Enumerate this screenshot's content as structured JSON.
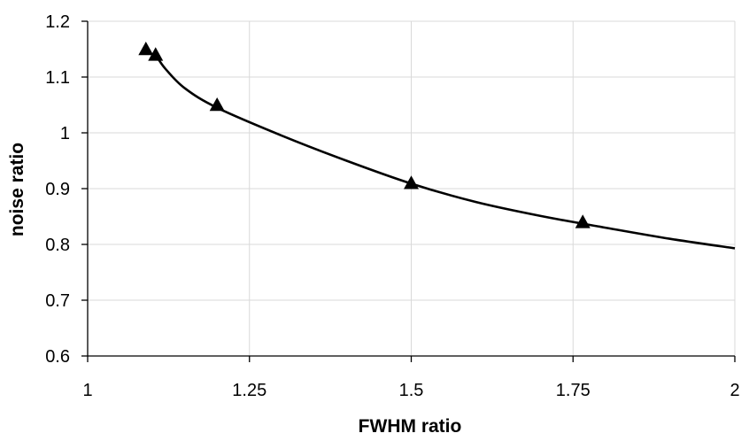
{
  "chart_data": {
    "type": "scatter",
    "title": "",
    "xlabel": "FWHM ratio",
    "ylabel": "noise ratio",
    "xlim": [
      1,
      2
    ],
    "ylim": [
      0.6,
      1.2
    ],
    "xticks": [
      1,
      1.25,
      1.5,
      1.75,
      2
    ],
    "xtick_labels": [
      "1",
      "1.25",
      "1.5",
      "1.75",
      "2"
    ],
    "yticks": [
      0.6,
      0.7,
      0.8,
      0.9,
      1.0,
      1.1,
      1.2
    ],
    "ytick_labels": [
      "0.6",
      "0.7",
      "0.8",
      "0.9",
      "1",
      "1.1",
      "1.2"
    ],
    "grid": "on (light gray, vertical and horizontal)",
    "legend": "none",
    "marker": "black filled triangle",
    "series": [
      {
        "type": "scatter",
        "x": [
          1.09,
          1.105,
          1.2,
          1.5,
          1.765
        ],
        "y": [
          1.15,
          1.14,
          1.05,
          0.91,
          0.84
        ]
      },
      {
        "type": "line",
        "x": [
          1.105,
          1.12,
          1.15,
          1.2,
          1.3,
          1.4,
          1.5,
          1.6,
          1.7,
          1.8,
          1.9,
          2.0
        ],
        "y": [
          1.14,
          1.115,
          1.08,
          1.045,
          0.995,
          0.95,
          0.909,
          0.876,
          0.851,
          0.83,
          0.81,
          0.793
        ]
      }
    ]
  }
}
